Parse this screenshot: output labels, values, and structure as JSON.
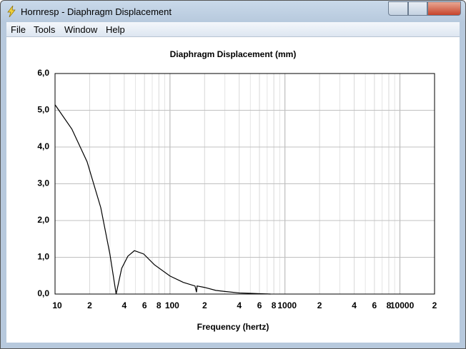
{
  "window": {
    "title": "Hornresp - Diaphragm Displacement"
  },
  "menu": [
    "File",
    "Tools",
    "Window",
    "Help"
  ],
  "chart_data": {
    "type": "line",
    "title": "Diaphragm Displacement (mm)",
    "x_label": "Frequency (hertz)",
    "log_x": true,
    "grid": true,
    "x": [
      10,
      14,
      19,
      25,
      30,
      34,
      38,
      43,
      49,
      59,
      73,
      100,
      130,
      165,
      170,
      172,
      200,
      250,
      300,
      400,
      500,
      600,
      750
    ],
    "series": [
      {
        "name": "Displacement",
        "color": "#000000",
        "values": [
          5.15,
          4.49,
          3.6,
          2.35,
          1.09,
          0,
          0.7,
          1.03,
          1.18,
          1.09,
          0.8,
          0.49,
          0.32,
          0.22,
          0.05,
          0.22,
          0.18,
          0.1,
          0.07,
          0.03,
          0.02,
          0.01,
          0
        ]
      }
    ],
    "xlim": [
      10,
      20000
    ],
    "xticks": [
      10,
      {
        "value": 20,
        "label": "2"
      },
      {
        "value": 40,
        "label": "4"
      },
      {
        "value": 60,
        "label": "6"
      },
      {
        "value": 80,
        "label": "8"
      },
      100,
      {
        "value": 200,
        "label": "2"
      },
      {
        "value": 400,
        "label": "4"
      },
      {
        "value": 600,
        "label": "6"
      },
      {
        "value": 800,
        "label": "8"
      },
      1000,
      {
        "value": 2000,
        "label": "2"
      },
      {
        "value": 4000,
        "label": "4"
      },
      {
        "value": 6000,
        "label": "6"
      },
      {
        "value": 8000,
        "label": "8"
      },
      10000,
      {
        "value": 20000,
        "label": "2"
      }
    ],
    "ylim": [
      0,
      6
    ],
    "yticks": [
      {
        "value": 0,
        "label": "0,0"
      },
      {
        "value": 1,
        "label": "1,0"
      },
      {
        "value": 2,
        "label": "2,0"
      },
      {
        "value": 3,
        "label": "3,0"
      },
      {
        "value": 4,
        "label": "4,0"
      },
      {
        "value": 5,
        "label": "5,0"
      },
      {
        "value": 6,
        "label": "6,0"
      }
    ]
  }
}
